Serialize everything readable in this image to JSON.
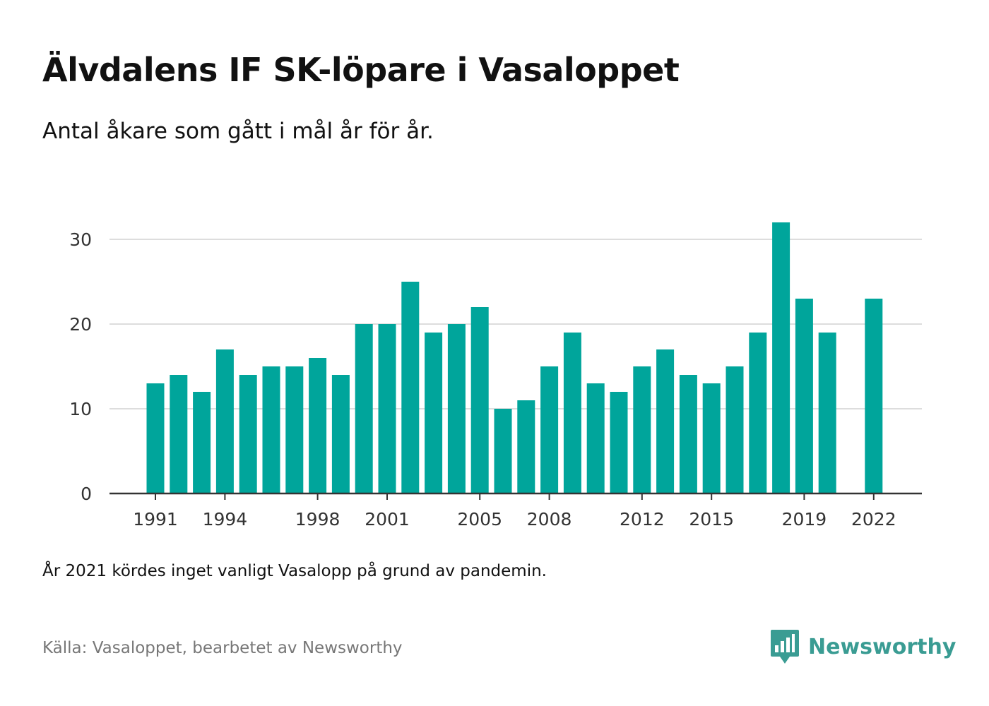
{
  "header": {
    "title": "Älvdalens IF SK-löpare i Vasaloppet",
    "subtitle": "Antal åkare som gått i mål år för år."
  },
  "footer": {
    "note": "År 2021 kördes inget vanligt Vasalopp på grund av pandemin.",
    "source": "Källa: Vasaloppet, bearbetet av Newsworthy",
    "brand": "Newsworthy"
  },
  "colors": {
    "bar": "#00a59b",
    "grid": "#dddddd",
    "axis": "#333333",
    "brand": "#3a9c93"
  },
  "icons": {
    "brand_logo": "bar-chart-speech-bubble-icon"
  },
  "chart_data": {
    "type": "bar",
    "x": [
      1991,
      1992,
      1993,
      1994,
      1995,
      1996,
      1997,
      1998,
      1999,
      2000,
      2001,
      2002,
      2003,
      2004,
      2005,
      2006,
      2007,
      2008,
      2009,
      2010,
      2011,
      2012,
      2013,
      2014,
      2015,
      2016,
      2017,
      2018,
      2019,
      2020,
      2021,
      2022
    ],
    "values": [
      13,
      14,
      12,
      17,
      14,
      15,
      15,
      16,
      14,
      20,
      20,
      25,
      19,
      20,
      22,
      10,
      11,
      15,
      19,
      13,
      12,
      15,
      17,
      14,
      13,
      15,
      19,
      32,
      23,
      19,
      null,
      23
    ],
    "x_tick_labels": [
      "1991",
      "1994",
      "1998",
      "2001",
      "2005",
      "2008",
      "2012",
      "2015",
      "2019",
      "2022"
    ],
    "y_ticks": [
      0,
      10,
      20,
      30
    ],
    "ylim": [
      0,
      33
    ],
    "grid": true,
    "xlabel": "",
    "ylabel": ""
  }
}
